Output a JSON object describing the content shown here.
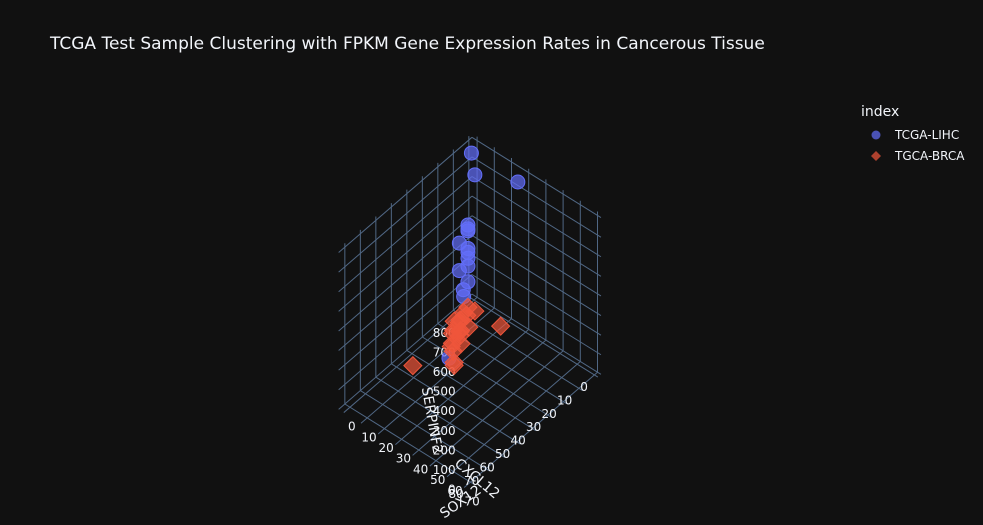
{
  "chart_data": {
    "type": "scatter3d",
    "title": "TCGA Test Sample Clustering with FPKM Gene Expression Rates in Cancerous Tissue",
    "axes": {
      "x": {
        "label": "SOX12",
        "ticks": [
          "0",
          "10",
          "20",
          "30",
          "40",
          "50",
          "60",
          "70"
        ],
        "range": [
          -3,
          72
        ]
      },
      "y": {
        "label": "CXCL12",
        "ticks": [
          "0",
          "10",
          "20",
          "30",
          "40",
          "50",
          "60",
          "70",
          "80"
        ],
        "range": [
          -2,
          84
        ]
      },
      "z": {
        "label": "SERPINF2",
        "ticks": [
          "0",
          "100",
          "200",
          "300",
          "400",
          "500",
          "600",
          "700",
          "800"
        ],
        "range": [
          0,
          820
        ]
      }
    },
    "legend": {
      "title": "index",
      "placement": "right",
      "entries": [
        {
          "name": "TCGA-LIHC",
          "symbol": "circle",
          "color": "#636efa"
        },
        {
          "name": "TGCA-BRCA",
          "symbol": "diamond",
          "color": "#ef553b"
        }
      ]
    },
    "series": [
      {
        "name": "TCGA-LIHC",
        "symbol": "circle",
        "color": "#636efa",
        "points": [
          {
            "x": 3,
            "y": 5,
            "z": 800
          },
          {
            "x": 30,
            "y": 5,
            "z": 800
          },
          {
            "x": 5,
            "y": 5,
            "z": 700
          },
          {
            "x": 10,
            "y": 15,
            "z": 540
          },
          {
            "x": 10,
            "y": 15,
            "z": 520
          },
          {
            "x": 10,
            "y": 15,
            "z": 510
          },
          {
            "x": 10,
            "y": 15,
            "z": 420
          },
          {
            "x": 5,
            "y": 15,
            "z": 420
          },
          {
            "x": 10,
            "y": 15,
            "z": 400
          },
          {
            "x": 10,
            "y": 15,
            "z": 370
          },
          {
            "x": 10,
            "y": 15,
            "z": 330
          },
          {
            "x": 5,
            "y": 15,
            "z": 280
          },
          {
            "x": 10,
            "y": 15,
            "z": 250
          },
          {
            "x": 10,
            "y": 18,
            "z": 230
          },
          {
            "x": 12,
            "y": 20,
            "z": 220
          },
          {
            "x": 35,
            "y": 55,
            "z": 270
          }
        ]
      },
      {
        "name": "TGCA-BRCA",
        "symbol": "diamond",
        "color": "#ef553b",
        "points": [
          {
            "x": 10,
            "y": 15,
            "z": 120
          },
          {
            "x": 12,
            "y": 18,
            "z": 110
          },
          {
            "x": 10,
            "y": 20,
            "z": 90
          },
          {
            "x": 15,
            "y": 20,
            "z": 80
          },
          {
            "x": 12,
            "y": 22,
            "z": 60
          },
          {
            "x": 10,
            "y": 25,
            "z": 55
          },
          {
            "x": 8,
            "y": 22,
            "z": 40
          },
          {
            "x": 15,
            "y": 25,
            "z": 30
          },
          {
            "x": 12,
            "y": 28,
            "z": 20
          },
          {
            "x": 10,
            "y": 20,
            "z": 10
          },
          {
            "x": 8,
            "y": 18,
            "z": 5
          },
          {
            "x": 5,
            "y": 15,
            "z": 15
          },
          {
            "x": 3,
            "y": 10,
            "z": 20
          },
          {
            "x": 2,
            "y": 15,
            "z": 5
          },
          {
            "x": 10,
            "y": 25,
            "z": 5
          },
          {
            "x": 5,
            "y": 45,
            "z": 0
          },
          {
            "x": 15,
            "y": 30,
            "z": 25
          },
          {
            "x": 20,
            "y": 35,
            "z": 30
          },
          {
            "x": 20,
            "y": 35,
            "z": 15
          },
          {
            "x": 20,
            "y": 5,
            "z": 10
          },
          {
            "x": 5,
            "y": 5,
            "z": 5
          }
        ]
      }
    ]
  }
}
